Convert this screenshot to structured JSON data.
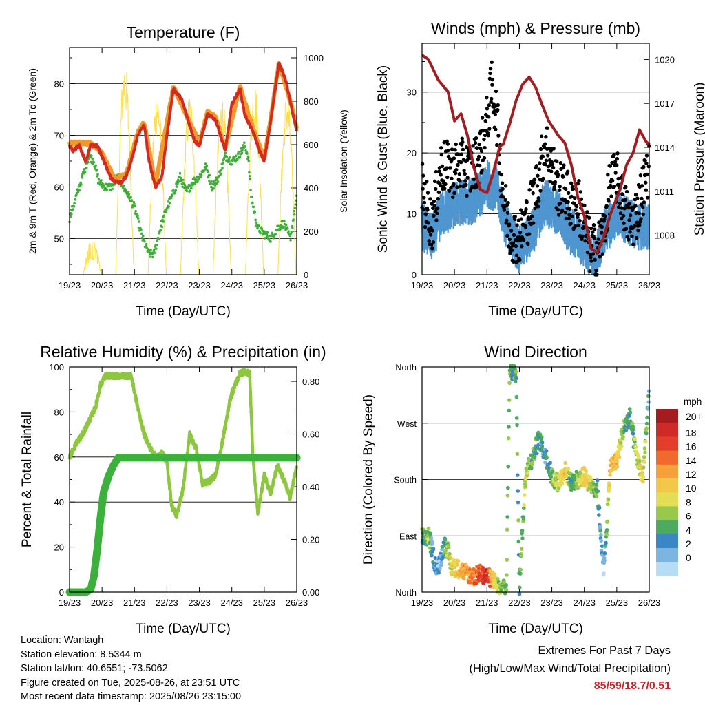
{
  "chart_data": [
    {
      "type": "line",
      "title": "Temperature (F)",
      "xlabel": "Time (Day/UTC)",
      "ylabel": "2m & 9m T (Red, Orange) & 2m Td (Green)",
      "y2label": "Solar Insolation (Yellow)",
      "x_ticks": [
        "19/23",
        "20/23",
        "21/23",
        "22/23",
        "23/23",
        "24/23",
        "25/23",
        "26/23"
      ],
      "ylim": [
        43,
        87
      ],
      "y_ticks": [
        50,
        60,
        70,
        80
      ],
      "y2lim": [
        0,
        1000
      ],
      "y2_ticks": [
        0,
        200,
        400,
        600,
        800,
        1000
      ],
      "grid": "horizontal at 50, 60, 70, 80",
      "series": [
        {
          "name": "2m T",
          "color": "#d42a1f",
          "x": [
            0,
            0.1,
            0.3,
            0.5,
            0.65,
            0.85,
            1.0,
            1.25,
            1.4,
            1.5,
            1.6,
            1.75,
            1.95,
            2.1,
            2.3,
            2.45,
            2.65,
            2.85,
            3.0,
            3.2,
            3.45,
            3.7,
            3.85,
            4.0,
            4.25,
            4.5,
            4.65,
            4.8,
            5.0,
            5.25,
            5.4,
            5.55,
            5.7,
            5.85,
            6.0,
            6.2,
            6.45,
            6.65,
            6.85,
            7.0
          ],
          "y": [
            68,
            67,
            68,
            65,
            68,
            68,
            66,
            62,
            61,
            61,
            61,
            62,
            66,
            70,
            72,
            65,
            60,
            62,
            70,
            79,
            77,
            72,
            69,
            68,
            74,
            73,
            70,
            67,
            76,
            79,
            74,
            72,
            70,
            67,
            65,
            73,
            84,
            81,
            75,
            71
          ]
        },
        {
          "name": "9m T",
          "color": "#f09a2a",
          "x": [
            0,
            0.3,
            0.65,
            1.0,
            1.4,
            1.75,
            2.1,
            2.3,
            2.65,
            3.2,
            3.7,
            4.0,
            4.25,
            4.5,
            4.8,
            5.25,
            5.7,
            6.0,
            6.2,
            6.45,
            6.85,
            7.0
          ],
          "y": [
            68.5,
            68.5,
            68.5,
            66.5,
            61.5,
            62.5,
            70.5,
            72.5,
            60.5,
            79.5,
            72.5,
            68.5,
            74.5,
            73.5,
            67.5,
            79.5,
            70.5,
            65.5,
            73.5,
            84,
            75.5,
            71.5
          ]
        },
        {
          "name": "2m Td",
          "color": "#3fae3a",
          "x": [
            0,
            0.2,
            0.45,
            0.6,
            0.75,
            0.9,
            1.1,
            1.3,
            1.5,
            1.65,
            1.85,
            2.0,
            2.25,
            2.45,
            2.6,
            2.8,
            3.0,
            3.15,
            3.4,
            3.6,
            3.8,
            4.0,
            4.2,
            4.4,
            4.6,
            4.8,
            5.0,
            5.2,
            5.4,
            5.5,
            5.6,
            5.8,
            6.0,
            6.2,
            6.4,
            6.6,
            6.8,
            7.0
          ],
          "y": [
            54,
            58,
            63,
            66,
            65,
            61,
            60,
            60,
            62,
            60,
            58,
            56,
            50,
            47,
            47,
            52,
            56,
            58,
            62,
            59,
            61,
            62,
            64,
            60,
            62,
            66,
            65,
            66,
            68,
            66,
            58,
            52,
            51,
            50,
            52,
            53,
            50,
            58
          ]
        },
        {
          "name": "Solar Insolation",
          "color": "#ffe04a",
          "axis": "y2",
          "day_peaks": [
            170,
            1000,
            860,
            840,
            830,
            900,
            850,
            850
          ]
        }
      ]
    },
    {
      "type": "scatter",
      "title": "Winds (mph) & Pressure (mb)",
      "xlabel": "Time (Day/UTC)",
      "ylabel": "Sonic Wind & Gust (Blue, Black)",
      "y2label": "Station Pressure (Maroon)",
      "x_ticks": [
        "19/23",
        "20/23",
        "21/23",
        "22/23",
        "23/23",
        "24/23",
        "25/23",
        "26/23"
      ],
      "ylim": [
        0,
        38
      ],
      "y_ticks": [
        0,
        10,
        20,
        30
      ],
      "y2lim": [
        1005.3,
        1021.1
      ],
      "y2_ticks": [
        1008,
        1011,
        1014,
        1017,
        1020
      ],
      "grid": "horizontal at 10, 20, 30",
      "series": [
        {
          "name": "Gust",
          "color": "#000000",
          "x": [
            0,
            0.3,
            0.6,
            0.9,
            1.2,
            1.5,
            1.8,
            2.0,
            2.15,
            2.3,
            2.5,
            2.7,
            3.0,
            3.3,
            3.6,
            3.8,
            4.0,
            4.2,
            4.4,
            4.6,
            4.8,
            5.0,
            5.2,
            5.4,
            5.6,
            5.8,
            6.0,
            6.2,
            6.4,
            6.6,
            6.8,
            7.0
          ],
          "y": [
            14,
            8,
            18,
            17,
            18,
            17,
            20,
            25,
            31,
            26,
            13,
            7,
            6,
            10,
            16,
            22,
            18,
            14,
            14,
            11,
            12,
            8,
            4,
            4,
            7,
            15,
            16,
            12,
            8,
            10,
            14,
            18
          ]
        },
        {
          "name": "Wind",
          "color": "#4f95d0",
          "x": [
            0,
            0.3,
            0.6,
            0.9,
            1.2,
            1.5,
            1.8,
            2.0,
            2.3,
            2.6,
            3.0,
            3.4,
            3.8,
            4.2,
            4.6,
            5.0,
            5.3,
            5.6,
            6.0,
            6.3,
            6.6,
            7.0
          ],
          "y": [
            8,
            6,
            10,
            11,
            12,
            12,
            13,
            15,
            14,
            8,
            4,
            7,
            12,
            10,
            7,
            5,
            2,
            7,
            10,
            9,
            8,
            8
          ]
        },
        {
          "name": "Pressure",
          "color": "#a01e22",
          "axis": "y2",
          "x": [
            0,
            0.2,
            0.5,
            0.8,
            1.0,
            1.2,
            1.4,
            1.6,
            1.8,
            2.0,
            2.2,
            2.4,
            2.5,
            2.7,
            2.9,
            3.1,
            3.3,
            3.5,
            3.7,
            3.9,
            4.2,
            4.4,
            4.6,
            4.8,
            5.0,
            5.2,
            5.4,
            5.6,
            5.8,
            6.1,
            6.3,
            6.5,
            6.7,
            6.9,
            7.0
          ],
          "y": [
            1020.3,
            1020,
            1018.6,
            1017.8,
            1015.8,
            1016.3,
            1014.8,
            1012.6,
            1011.1,
            1010.9,
            1012.3,
            1014.1,
            1014.2,
            1015.6,
            1017.2,
            1018.3,
            1018.8,
            1018.1,
            1016.9,
            1015.8,
            1014.8,
            1014.3,
            1012.8,
            1010.6,
            1009.3,
            1007.1,
            1006.8,
            1007.9,
            1009.4,
            1011.1,
            1012.8,
            1013.6,
            1015.2,
            1014.4,
            1014.2
          ]
        }
      ]
    },
    {
      "type": "line",
      "title": "Relative Humidity (%) & Precipitation (in)",
      "xlabel": "Time (Day/UTC)",
      "ylabel": "Percent & Total Rainfall",
      "x_ticks": [
        "19/23",
        "20/23",
        "21/23",
        "22/23",
        "23/23",
        "24/23",
        "25/23",
        "26/23"
      ],
      "ylim": [
        0,
        100
      ],
      "y_ticks": [
        0,
        20,
        40,
        60,
        80,
        100
      ],
      "y2lim": [
        0,
        0.855
      ],
      "y2_ticks": [
        "0.00",
        "0.20",
        "0.40",
        "0.60",
        "0.80"
      ],
      "grid": "horizontal at 20, 40, 60, 80",
      "series": [
        {
          "name": "Relative Humidity",
          "color": "#8dc63f",
          "x": [
            0,
            0.2,
            0.4,
            0.6,
            0.8,
            0.95,
            1.1,
            1.3,
            1.55,
            1.7,
            1.9,
            2.1,
            2.3,
            2.45,
            2.6,
            2.75,
            2.85,
            3.0,
            3.15,
            3.3,
            3.5,
            3.7,
            3.9,
            4.1,
            4.3,
            4.5,
            4.7,
            4.85,
            4.95,
            5.1,
            5.25,
            5.4,
            5.55,
            5.65,
            5.8,
            6.0,
            6.2,
            6.4,
            6.6,
            6.8,
            7.0
          ],
          "y": [
            60,
            66,
            70,
            76,
            82,
            92,
            96,
            96,
            96,
            96,
            96,
            82,
            70,
            65,
            61,
            60,
            62,
            58,
            38,
            34,
            46,
            70,
            64,
            48,
            49,
            52,
            66,
            78,
            86,
            92,
            97,
            98,
            97,
            60,
            35,
            52,
            44,
            56,
            50,
            42,
            56
          ]
        },
        {
          "name": "Total Rainfall",
          "color": "#3bb03b",
          "axis": "y2",
          "x": [
            0,
            0.5,
            0.65,
            0.75,
            0.85,
            0.95,
            1.05,
            1.2,
            1.35,
            1.5,
            7.0
          ],
          "y": [
            0,
            0,
            0.01,
            0.06,
            0.16,
            0.28,
            0.38,
            0.44,
            0.48,
            0.51,
            0.51
          ]
        }
      ]
    },
    {
      "type": "scatter",
      "title": "Wind Direction",
      "xlabel": "Time (Day/UTC)",
      "ylabel": "Direction (Colored By Speed)",
      "x_ticks": [
        "19/23",
        "20/23",
        "21/23",
        "22/23",
        "23/23",
        "24/23",
        "25/23",
        "26/23"
      ],
      "y_ticks": [
        "North",
        "East",
        "South",
        "West",
        "North"
      ],
      "ylim": [
        0,
        360
      ],
      "grid": "horizontal at East, South, West",
      "colorbar": {
        "unit": "mph",
        "labels": [
          "20+",
          "18",
          "16",
          "14",
          "12",
          "10",
          "8",
          "6",
          "4",
          "2",
          "0"
        ],
        "colors": [
          "#a51c20",
          "#cf2a26",
          "#e63d2b",
          "#f06a2d",
          "#f5a13b",
          "#f3c84a",
          "#e3de56",
          "#98c94c",
          "#4daa5e",
          "#3b87c6",
          "#7db5e2",
          "#b7dcf5"
        ]
      },
      "series": [
        {
          "name": "Direction",
          "color_by": "speed",
          "x": [
            0,
            0.1,
            0.2,
            0.3,
            0.4,
            0.5,
            0.6,
            0.7,
            0.8,
            0.9,
            1.0,
            1.2,
            1.4,
            1.6,
            1.8,
            2.0,
            2.2,
            2.4,
            2.6,
            2.7,
            2.8,
            2.9,
            3.0,
            3.2,
            3.4,
            3.6,
            3.8,
            4.0,
            4.2,
            4.4,
            4.6,
            4.8,
            5.0,
            5.2,
            5.4,
            5.6,
            5.8,
            6.0,
            6.2,
            6.4,
            6.6,
            6.8,
            7.0
          ],
          "y": [
            88,
            85,
            90,
            70,
            45,
            40,
            60,
            75,
            65,
            40,
            40,
            35,
            30,
            25,
            30,
            25,
            20,
            5,
            5,
            360,
            350,
            350,
            10,
            195,
            215,
            245,
            220,
            185,
            175,
            195,
            175,
            180,
            185,
            170,
            165,
            30,
            200,
            210,
            260,
            280,
            220,
            180,
            320
          ],
          "speed": [
            8,
            6,
            10,
            5,
            4,
            3,
            4,
            7,
            9,
            11,
            12,
            13,
            15,
            16,
            19,
            21,
            12,
            9,
            8,
            8,
            6,
            8,
            7,
            10,
            7,
            6,
            5,
            8,
            11,
            13,
            6,
            9,
            12,
            10,
            7,
            2,
            14,
            13,
            8,
            6,
            9,
            12,
            4
          ]
        }
      ]
    }
  ],
  "info": {
    "location": "Location: Wantagh",
    "elevation": "Station elevation: 8.5344 m",
    "latlon": "Station lat/lon: 40.6551; -73.5062",
    "created": "Figure created on Tue, 2025-08-26, at 23:51 UTC",
    "latest": "Most recent data timestamp: 2025/08/26 23:15:00"
  },
  "extremes": {
    "line1": "Extremes For Past 7 Days",
    "line2": "(High/Low/Max Wind/Total Precipitation)",
    "values": "85/59/18.7/0.51",
    "color": "#c0282c"
  }
}
